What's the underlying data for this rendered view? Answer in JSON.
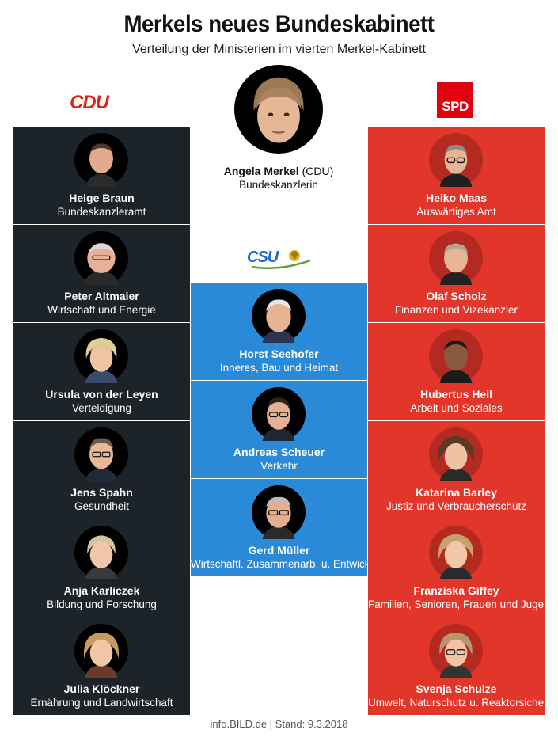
{
  "header": {
    "title": "Merkels neues Bundeskabinett",
    "subtitle": "Verteilung der Ministerien im vierten Merkel-Kabinett"
  },
  "logos": {
    "cdu": "CDU",
    "spd": "SPD",
    "csu": "CSU"
  },
  "chancellor": {
    "name": "Angela Merkel",
    "party": "(CDU)",
    "role": "Bundeskanzlerin"
  },
  "cdu": [
    {
      "name": "Helge Braun",
      "role": "Bundeskanzleramt"
    },
    {
      "name": "Peter Altmaier",
      "role": "Wirtschaft und Energie"
    },
    {
      "name": "Ursula von der Leyen",
      "role": "Verteidigung"
    },
    {
      "name": "Jens Spahn",
      "role": "Gesundheit"
    },
    {
      "name": "Anja Karliczek",
      "role": "Bildung und Forschung"
    },
    {
      "name": "Julia Klöckner",
      "role": "Ernährung und Landwirtschaft"
    }
  ],
  "csu": [
    {
      "name": "Horst Seehofer",
      "role": "Inneres, Bau und Heimat"
    },
    {
      "name": "Andreas Scheuer",
      "role": "Verkehr"
    },
    {
      "name": "Gerd Müller",
      "role": "Wirtschaftl. Zusammenarb. u. Entwicklung"
    }
  ],
  "spd": [
    {
      "name": "Heiko Maas",
      "role": "Auswärtiges Amt"
    },
    {
      "name": "Olaf Scholz",
      "role": "Finanzen und Vizekanzler"
    },
    {
      "name": "Hubertus Heil",
      "role": "Arbeit und Soziales"
    },
    {
      "name": "Katarina Barley",
      "role": "Justiz und Verbraucherschutz"
    },
    {
      "name": "Franziska Giffey",
      "role": "Familien, Senioren, Frauen und Jugend"
    },
    {
      "name": "Svenja Schulze",
      "role": "Umwelt, Naturschutz u. Reaktorsicherheit"
    }
  ],
  "footer": "info.BILD.de | Stand: 9.3.2018",
  "colors": {
    "cdu": "#1c2329",
    "spd": "#e2362a",
    "csu": "#2b8ad8"
  }
}
